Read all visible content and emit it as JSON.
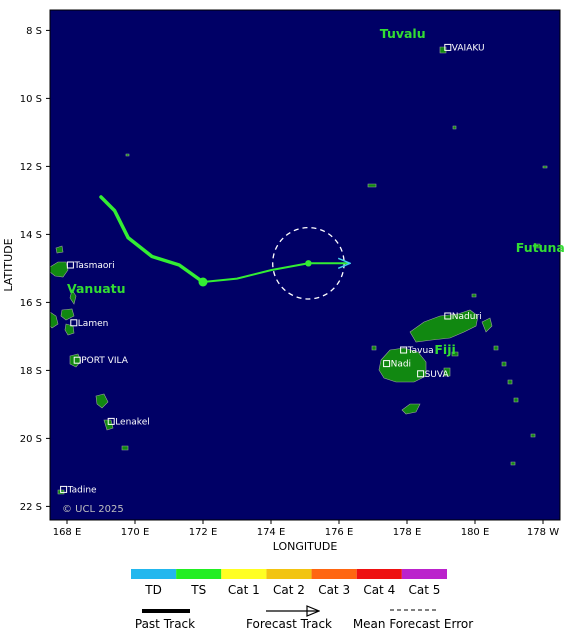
{
  "map": {
    "axis_x_title": "LONGITUDE",
    "axis_y_title": "LATITUDE",
    "lon_range": [
      167.5,
      182.5
    ],
    "lat_range": [
      7.4,
      22.4
    ],
    "lon_ticks": [
      {
        "value": 168,
        "label": "168 E"
      },
      {
        "value": 170,
        "label": "170 E"
      },
      {
        "value": 172,
        "label": "172 E"
      },
      {
        "value": 174,
        "label": "174 E"
      },
      {
        "value": 176,
        "label": "176 E"
      },
      {
        "value": 178,
        "label": "178 E"
      },
      {
        "value": 180,
        "label": "180 E"
      },
      {
        "value": 182,
        "label": "178 W"
      }
    ],
    "lat_ticks": [
      {
        "value": 8,
        "label": "8 S"
      },
      {
        "value": 10,
        "label": "10 S"
      },
      {
        "value": 12,
        "label": "12 S"
      },
      {
        "value": 14,
        "label": "14 S"
      },
      {
        "value": 16,
        "label": "16 S"
      },
      {
        "value": 18,
        "label": "18 S"
      },
      {
        "value": 20,
        "label": "20 S"
      },
      {
        "value": 22,
        "label": "22 S"
      }
    ],
    "countries": [
      {
        "name": "Tuvalu",
        "lon": 177.2,
        "lat": 8.1
      },
      {
        "name": "Vanuatu",
        "lon": 168.0,
        "lat": 15.6
      },
      {
        "name": "Futuna",
        "lon": 181.2,
        "lat": 14.4
      },
      {
        "name": "Fiji",
        "lon": 179.1,
        "lat": 17.4
      }
    ],
    "places": [
      {
        "name": "VAIAKU",
        "lon": 179.2,
        "lat": 8.5
      },
      {
        "name": "Tasmaori",
        "lon": 168.1,
        "lat": 14.9
      },
      {
        "name": "Lamen",
        "lon": 168.2,
        "lat": 16.6
      },
      {
        "name": "PORT VILA",
        "lon": 168.3,
        "lat": 17.7
      },
      {
        "name": "Lenakel",
        "lon": 169.3,
        "lat": 19.5
      },
      {
        "name": "Tadine",
        "lon": 167.9,
        "lat": 21.5
      },
      {
        "name": "Naduri",
        "lon": 179.2,
        "lat": 16.4
      },
      {
        "name": "Tavua",
        "lon": 177.9,
        "lat": 17.4
      },
      {
        "name": "Nadi",
        "lon": 177.4,
        "lat": 17.8
      },
      {
        "name": "SUVA",
        "lon": 178.4,
        "lat": 18.1
      }
    ],
    "copyright": "© UCL 2025",
    "colors": {
      "ocean": "#000066",
      "land": "#118811",
      "track": "#33ee33",
      "forecast": "#44ccee"
    }
  },
  "storm": {
    "past_track": [
      [
        169.0,
        12.9
      ],
      [
        169.4,
        13.3
      ],
      [
        169.8,
        14.1
      ],
      [
        170.5,
        14.65
      ],
      [
        171.3,
        14.9
      ],
      [
        172.0,
        15.4
      ]
    ],
    "current_position": [
      172.0,
      15.4
    ],
    "forecast_track": [
      [
        172.0,
        15.4
      ],
      [
        173.0,
        15.3
      ],
      [
        174.0,
        15.05
      ],
      [
        175.1,
        14.85
      ],
      [
        176.3,
        14.85
      ]
    ],
    "forecast_point": [
      175.1,
      14.85
    ],
    "error_circle": {
      "center": [
        175.1,
        14.85
      ],
      "radius_deg": 1.05
    }
  },
  "legend": {
    "categories": [
      {
        "label": "TD",
        "color": "#22b7ee"
      },
      {
        "label": "TS",
        "color": "#22ee22"
      },
      {
        "label": "Cat 1",
        "color": "#ffff22"
      },
      {
        "label": "Cat 2",
        "color": "#f2c411"
      },
      {
        "label": "Cat 3",
        "color": "#ff6611"
      },
      {
        "label": "Cat 4",
        "color": "#ee1111"
      },
      {
        "label": "Cat 5",
        "color": "#bb22cc"
      }
    ],
    "past_track": "Past Track",
    "forecast_track": "Forecast Track",
    "mean_error": "Mean Forecast Error"
  }
}
